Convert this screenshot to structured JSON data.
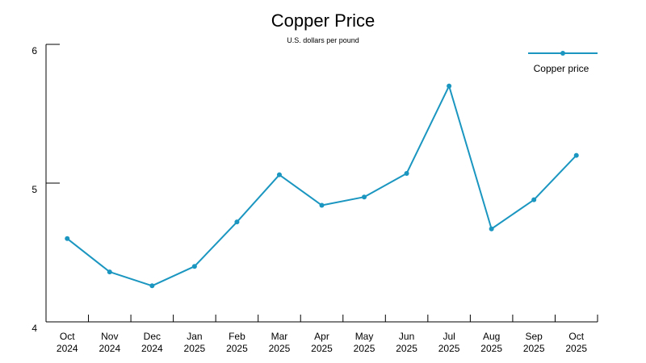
{
  "chart_data": {
    "type": "line",
    "title": "Copper Price",
    "subtitle": "U.S. dollars per pound",
    "xlabel": "",
    "ylabel": "",
    "categories": [
      {
        "month": "Oct",
        "year": "2024"
      },
      {
        "month": "Nov",
        "year": "2024"
      },
      {
        "month": "Dec",
        "year": "2024"
      },
      {
        "month": "Jan",
        "year": "2025"
      },
      {
        "month": "Feb",
        "year": "2025"
      },
      {
        "month": "Mar",
        "year": "2025"
      },
      {
        "month": "Apr",
        "year": "2025"
      },
      {
        "month": "May",
        "year": "2025"
      },
      {
        "month": "Jun",
        "year": "2025"
      },
      {
        "month": "Jul",
        "year": "2025"
      },
      {
        "month": "Aug",
        "year": "2025"
      },
      {
        "month": "Sep",
        "year": "2025"
      },
      {
        "month": "Oct",
        "year": "2025"
      }
    ],
    "series": [
      {
        "name": "Copper price",
        "color": "#1a96c0",
        "values": [
          4.6,
          4.36,
          4.26,
          4.4,
          4.72,
          5.06,
          4.84,
          4.9,
          5.07,
          5.7,
          4.67,
          4.88,
          5.2
        ]
      }
    ],
    "ylim": [
      4,
      6
    ],
    "yticks": [
      "4",
      "5",
      "6"
    ],
    "grid": false,
    "legend_position": "top-right"
  }
}
